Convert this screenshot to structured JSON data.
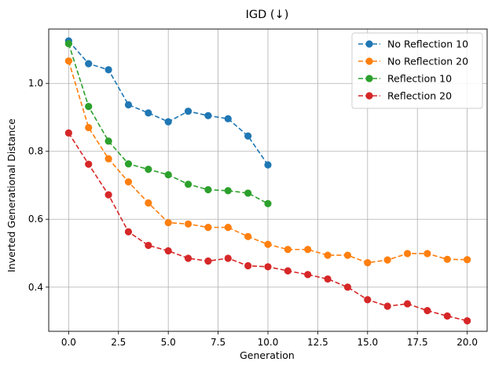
{
  "chart_data": {
    "type": "line",
    "title": "IGD (↓)",
    "xlabel": "Generation",
    "ylabel": "Inverted Generational Distance",
    "xlim": [
      -1.0,
      21.0
    ],
    "ylim": [
      0.27,
      1.16
    ],
    "xticks": [
      0.0,
      2.5,
      5.0,
      7.5,
      10.0,
      12.5,
      15.0,
      17.5,
      20.0
    ],
    "xtick_labels": [
      "0.0",
      "2.5",
      "5.0",
      "7.5",
      "10.0",
      "12.5",
      "15.0",
      "17.5",
      "20.0"
    ],
    "yticks": [
      0.4,
      0.6,
      0.8,
      1.0
    ],
    "ytick_labels": [
      "0.4",
      "0.6",
      "0.8",
      "1.0"
    ],
    "grid": true,
    "legend_position": "upper-right",
    "series": [
      {
        "name": "No Reflection 10",
        "color": "#1f77b4",
        "x": [
          0,
          1,
          2,
          3,
          4,
          5,
          6,
          7,
          8,
          9,
          10
        ],
        "values": [
          1.125,
          1.058,
          1.04,
          0.937,
          0.913,
          0.887,
          0.918,
          0.905,
          0.896,
          0.845,
          0.76
        ]
      },
      {
        "name": "No Reflection 20",
        "color": "#ff7f0e",
        "x": [
          0,
          1,
          2,
          3,
          4,
          5,
          6,
          7,
          8,
          9,
          10,
          11,
          12,
          13,
          14,
          15,
          16,
          17,
          18,
          19,
          20
        ],
        "values": [
          1.066,
          0.87,
          0.778,
          0.71,
          0.648,
          0.59,
          0.586,
          0.576,
          0.576,
          0.549,
          0.526,
          0.511,
          0.511,
          0.494,
          0.494,
          0.472,
          0.48,
          0.499,
          0.499,
          0.482,
          0.481
        ]
      },
      {
        "name": "Reflection 10",
        "color": "#2ca02c",
        "x": [
          0,
          1,
          2,
          3,
          4,
          5,
          6,
          7,
          8,
          9,
          10
        ],
        "values": [
          1.117,
          0.932,
          0.83,
          0.763,
          0.747,
          0.731,
          0.703,
          0.687,
          0.684,
          0.677,
          0.646
        ]
      },
      {
        "name": "Reflection 20",
        "color": "#d62728",
        "x": [
          0,
          1,
          2,
          3,
          4,
          5,
          6,
          7,
          8,
          9,
          10,
          11,
          12,
          13,
          14,
          15,
          16,
          17,
          18,
          19,
          20
        ],
        "values": [
          0.854,
          0.762,
          0.672,
          0.563,
          0.523,
          0.507,
          0.485,
          0.477,
          0.485,
          0.463,
          0.46,
          0.448,
          0.437,
          0.424,
          0.4,
          0.363,
          0.344,
          0.351,
          0.331,
          0.315,
          0.301
        ]
      }
    ]
  }
}
